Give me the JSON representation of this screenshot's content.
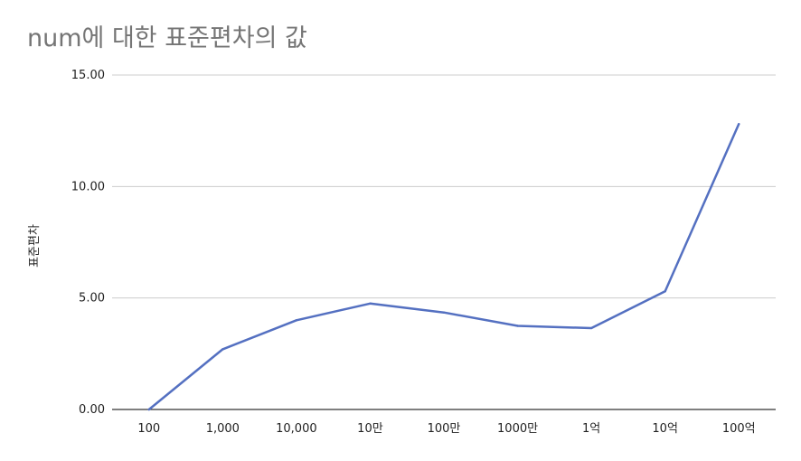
{
  "chart_data": {
    "type": "line",
    "title": "num에 대한 표준편차의 값",
    "xlabel": "",
    "ylabel": "표준편차",
    "categories": [
      "100",
      "1,000",
      "10,000",
      "10만",
      "100만",
      "1000만",
      "1억",
      "10억",
      "100억"
    ],
    "series": [
      {
        "values": [
          0.0,
          2.7,
          4.0,
          4.75,
          4.35,
          3.75,
          3.65,
          5.3,
          12.8
        ]
      }
    ],
    "ylim": [
      0,
      15
    ],
    "yticks": [
      "0.00",
      "5.00",
      "10.00",
      "15.00"
    ],
    "grid": true,
    "legend": "none",
    "colors": {
      "line": "#5470c1",
      "grid": "#cccccc",
      "axis": "#333333"
    }
  }
}
